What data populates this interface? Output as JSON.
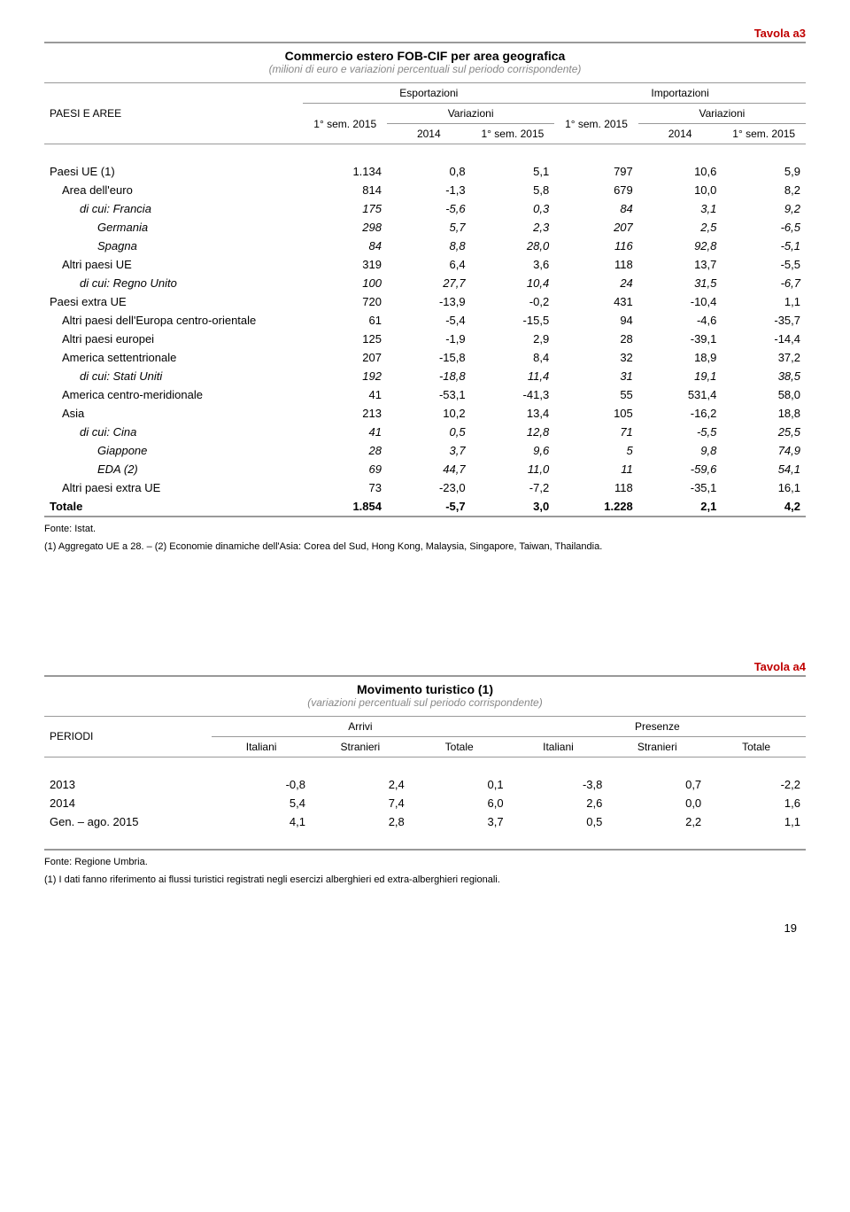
{
  "colors": {
    "accent": "#c00000",
    "border": "#999999",
    "subtitle": "#888888",
    "text": "#000000",
    "background": "#ffffff"
  },
  "table_a3": {
    "label": "Tavola a3",
    "title": "Commercio estero FOB-CIF per area geografica",
    "subtitle": "(milioni di euro e variazioni percentuali sul periodo corrispondente)",
    "col_left_header": "PAESI E AREE",
    "group_export": "Esportazioni",
    "group_import": "Importazioni",
    "sub_sem": "1° sem. 2015",
    "sub_var": "Variazioni",
    "sub_2014": "2014",
    "rows": [
      {
        "label": "Paesi UE (1)",
        "indent": 0,
        "vals": [
          "1.134",
          "0,8",
          "5,1",
          "797",
          "10,6",
          "5,9"
        ]
      },
      {
        "label": "Area dell'euro",
        "indent": 1,
        "vals": [
          "814",
          "-1,3",
          "5,8",
          "679",
          "10,0",
          "8,2"
        ]
      },
      {
        "label": "di cui: Francia",
        "indent": 2,
        "italic": true,
        "vals": [
          "175",
          "-5,6",
          "0,3",
          "84",
          "3,1",
          "9,2"
        ]
      },
      {
        "label": "Germania",
        "indent": 3,
        "italic": true,
        "vals": [
          "298",
          "5,7",
          "2,3",
          "207",
          "2,5",
          "-6,5"
        ]
      },
      {
        "label": "Spagna",
        "indent": 3,
        "italic": true,
        "vals": [
          "84",
          "8,8",
          "28,0",
          "116",
          "92,8",
          "-5,1"
        ]
      },
      {
        "label": "Altri paesi UE",
        "indent": 1,
        "vals": [
          "319",
          "6,4",
          "3,6",
          "118",
          "13,7",
          "-5,5"
        ]
      },
      {
        "label": "di cui: Regno Unito",
        "indent": 2,
        "italic": true,
        "vals": [
          "100",
          "27,7",
          "10,4",
          "24",
          "31,5",
          "-6,7"
        ]
      },
      {
        "label": "Paesi extra UE",
        "indent": 0,
        "vals": [
          "720",
          "-13,9",
          "-0,2",
          "431",
          "-10,4",
          "1,1"
        ]
      },
      {
        "label": "Altri paesi dell'Europa centro-orientale",
        "indent": 1,
        "vals": [
          "61",
          "-5,4",
          "-15,5",
          "94",
          "-4,6",
          "-35,7"
        ]
      },
      {
        "label": "Altri paesi europei",
        "indent": 1,
        "vals": [
          "125",
          "-1,9",
          "2,9",
          "28",
          "-39,1",
          "-14,4"
        ]
      },
      {
        "label": "America settentrionale",
        "indent": 1,
        "vals": [
          "207",
          "-15,8",
          "8,4",
          "32",
          "18,9",
          "37,2"
        ]
      },
      {
        "label": "di cui: Stati Uniti",
        "indent": 2,
        "italic": true,
        "vals": [
          "192",
          "-18,8",
          "11,4",
          "31",
          "19,1",
          "38,5"
        ]
      },
      {
        "label": "America centro-meridionale",
        "indent": 1,
        "vals": [
          "41",
          "-53,1",
          "-41,3",
          "55",
          "531,4",
          "58,0"
        ]
      },
      {
        "label": "Asia",
        "indent": 1,
        "vals": [
          "213",
          "10,2",
          "13,4",
          "105",
          "-16,2",
          "18,8"
        ]
      },
      {
        "label": "di cui: Cina",
        "indent": 2,
        "italic": true,
        "vals": [
          "41",
          "0,5",
          "12,8",
          "71",
          "-5,5",
          "25,5"
        ]
      },
      {
        "label": "Giappone",
        "indent": 3,
        "italic": true,
        "vals": [
          "28",
          "3,7",
          "9,6",
          "5",
          "9,8",
          "74,9"
        ]
      },
      {
        "label": "EDA (2)",
        "indent": 3,
        "italic": true,
        "vals": [
          "69",
          "44,7",
          "11,0",
          "11",
          "-59,6",
          "54,1"
        ]
      },
      {
        "label": "Altri paesi extra UE",
        "indent": 1,
        "vals": [
          "73",
          "-23,0",
          "-7,2",
          "118",
          "-35,1",
          "16,1"
        ]
      },
      {
        "label": "Totale",
        "indent": 0,
        "bold": true,
        "vals": [
          "1.854",
          "-5,7",
          "3,0",
          "1.228",
          "2,1",
          "4,2"
        ]
      }
    ],
    "footnote_source": "Fonte: Istat.",
    "footnote_notes": "(1) Aggregato UE a 28. – (2) Economie dinamiche dell'Asia: Corea del Sud, Hong Kong, Malaysia, Singapore, Taiwan, Thailandia."
  },
  "table_a4": {
    "label": "Tavola a4",
    "title": "Movimento turistico (1)",
    "subtitle": "(variazioni percentuali sul periodo corrispondente)",
    "col_left_header": "PERIODI",
    "group_arrivi": "Arrivi",
    "group_presenze": "Presenze",
    "sub_italiani": "Italiani",
    "sub_stranieri": "Stranieri",
    "sub_totale": "Totale",
    "rows": [
      {
        "label": "2013",
        "vals": [
          "-0,8",
          "2,4",
          "0,1",
          "-3,8",
          "0,7",
          "-2,2"
        ]
      },
      {
        "label": "2014",
        "vals": [
          "5,4",
          "7,4",
          "6,0",
          "2,6",
          "0,0",
          "1,6"
        ]
      },
      {
        "label": "Gen. – ago. 2015",
        "vals": [
          "4,1",
          "2,8",
          "3,7",
          "0,5",
          "2,2",
          "1,1"
        ]
      }
    ],
    "footnote_source": "Fonte: Regione Umbria.",
    "footnote_notes": "(1) I dati fanno riferimento ai flussi turistici registrati negli esercizi alberghieri ed extra-alberghieri regionali."
  },
  "page_number": "19"
}
